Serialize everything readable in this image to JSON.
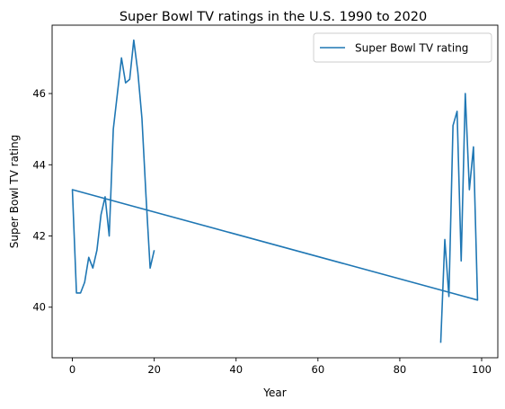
{
  "chart_data": {
    "type": "line",
    "title": "Super Bowl TV ratings in the U.S. 1990 to 2020",
    "xlabel": "Year",
    "ylabel": "Super Bowl TV rating",
    "xlim": [
      -4.95,
      103.95
    ],
    "ylim": [
      38.58,
      47.92
    ],
    "x_ticks": [
      0,
      20,
      40,
      60,
      80,
      100
    ],
    "y_ticks": [
      40,
      42,
      44,
      46
    ],
    "grid": false,
    "legend_position": "top-right",
    "series": [
      {
        "name": "Super Bowl TV rating",
        "color": "#1f77b4",
        "x": [
          90,
          91,
          92,
          93,
          94,
          95,
          96,
          97,
          98,
          99,
          0,
          1,
          2,
          3,
          4,
          5,
          6,
          7,
          8,
          9,
          10,
          11,
          12,
          13,
          14,
          15,
          16,
          17,
          18,
          19,
          20
        ],
        "values": [
          39.0,
          41.9,
          40.3,
          45.1,
          45.5,
          41.3,
          46.0,
          43.3,
          44.5,
          40.2,
          43.3,
          40.4,
          40.4,
          40.7,
          41.4,
          41.1,
          41.6,
          42.6,
          43.1,
          42.0,
          45.0,
          46.0,
          47.0,
          46.3,
          46.4,
          47.5,
          46.6,
          45.3,
          43.1,
          41.1,
          41.6
        ]
      }
    ]
  }
}
